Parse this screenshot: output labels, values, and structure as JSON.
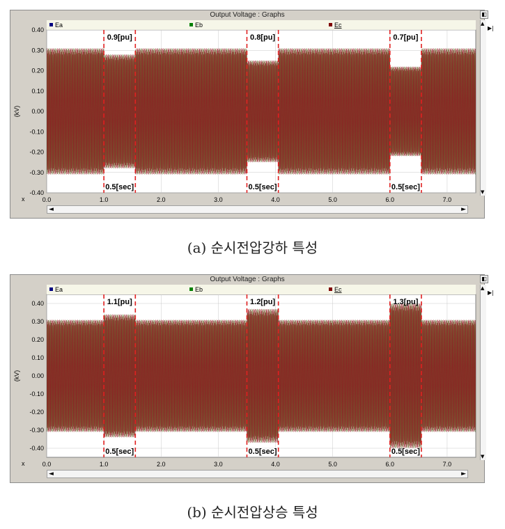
{
  "panels": [
    {
      "window_title": "Output Voltage : Graphs",
      "caption": "(a) 순시전압강하 특성",
      "chart_data": {
        "type": "line",
        "ylabel": "(kV)",
        "xlabel": "x",
        "xlim": [
          0,
          7.5
        ],
        "ylim": [
          -0.4,
          0.4
        ],
        "x_ticks": [
          "0.0",
          "1.0",
          "2.0",
          "3.0",
          "4.0",
          "5.0",
          "6.0",
          "7.0"
        ],
        "y_ticks": [
          "0.40",
          "0.30",
          "0.20",
          "0.10",
          "0.00",
          "-0.10",
          "-0.20",
          "-0.30",
          "-0.40"
        ],
        "series": [
          {
            "name": "Ea",
            "color": "#000080"
          },
          {
            "name": "Eb",
            "color": "#008000"
          },
          {
            "name": "Ec",
            "color": "#800000"
          }
        ],
        "nominal_amplitude": 0.31,
        "events": [
          {
            "start": 1.0,
            "end": 1.55,
            "amplitude": 0.28,
            "label_top": "0.9[pu]",
            "label_bottom": "0.5[sec]"
          },
          {
            "start": 3.5,
            "end": 4.05,
            "amplitude": 0.25,
            "label_top": "0.8[pu]",
            "label_bottom": "0.5[sec]"
          },
          {
            "start": 6.0,
            "end": 6.55,
            "amplitude": 0.22,
            "label_top": "0.7[pu]",
            "label_bottom": "0.5[sec]"
          }
        ],
        "grid": true
      }
    },
    {
      "window_title": "Output Voltage : Graphs",
      "caption": "(b) 순시전압상승 특성",
      "chart_data": {
        "type": "line",
        "ylabel": "(kV)",
        "xlabel": "x",
        "xlim": [
          0,
          7.5
        ],
        "ylim": [
          -0.45,
          0.45
        ],
        "x_ticks": [
          "0.0",
          "1.0",
          "2.0",
          "3.0",
          "4.0",
          "5.0",
          "6.0",
          "7.0"
        ],
        "y_ticks": [
          "0.40",
          "0.30",
          "0.20",
          "0.10",
          "0.00",
          "-0.10",
          "-0.20",
          "-0.30",
          "-0.40"
        ],
        "series": [
          {
            "name": "Ea",
            "color": "#000080"
          },
          {
            "name": "Eb",
            "color": "#008000"
          },
          {
            "name": "Ec",
            "color": "#800000"
          }
        ],
        "nominal_amplitude": 0.31,
        "events": [
          {
            "start": 1.0,
            "end": 1.55,
            "amplitude": 0.34,
            "label_top": "1.1[pu]",
            "label_bottom": "0.5[sec]"
          },
          {
            "start": 3.5,
            "end": 4.05,
            "amplitude": 0.37,
            "label_top": "1.2[pu]",
            "label_bottom": "0.5[sec]"
          },
          {
            "start": 6.0,
            "end": 6.55,
            "amplitude": 0.4,
            "label_top": "1.3[pu]",
            "label_bottom": "0.5[sec]"
          }
        ],
        "grid": true
      }
    }
  ]
}
